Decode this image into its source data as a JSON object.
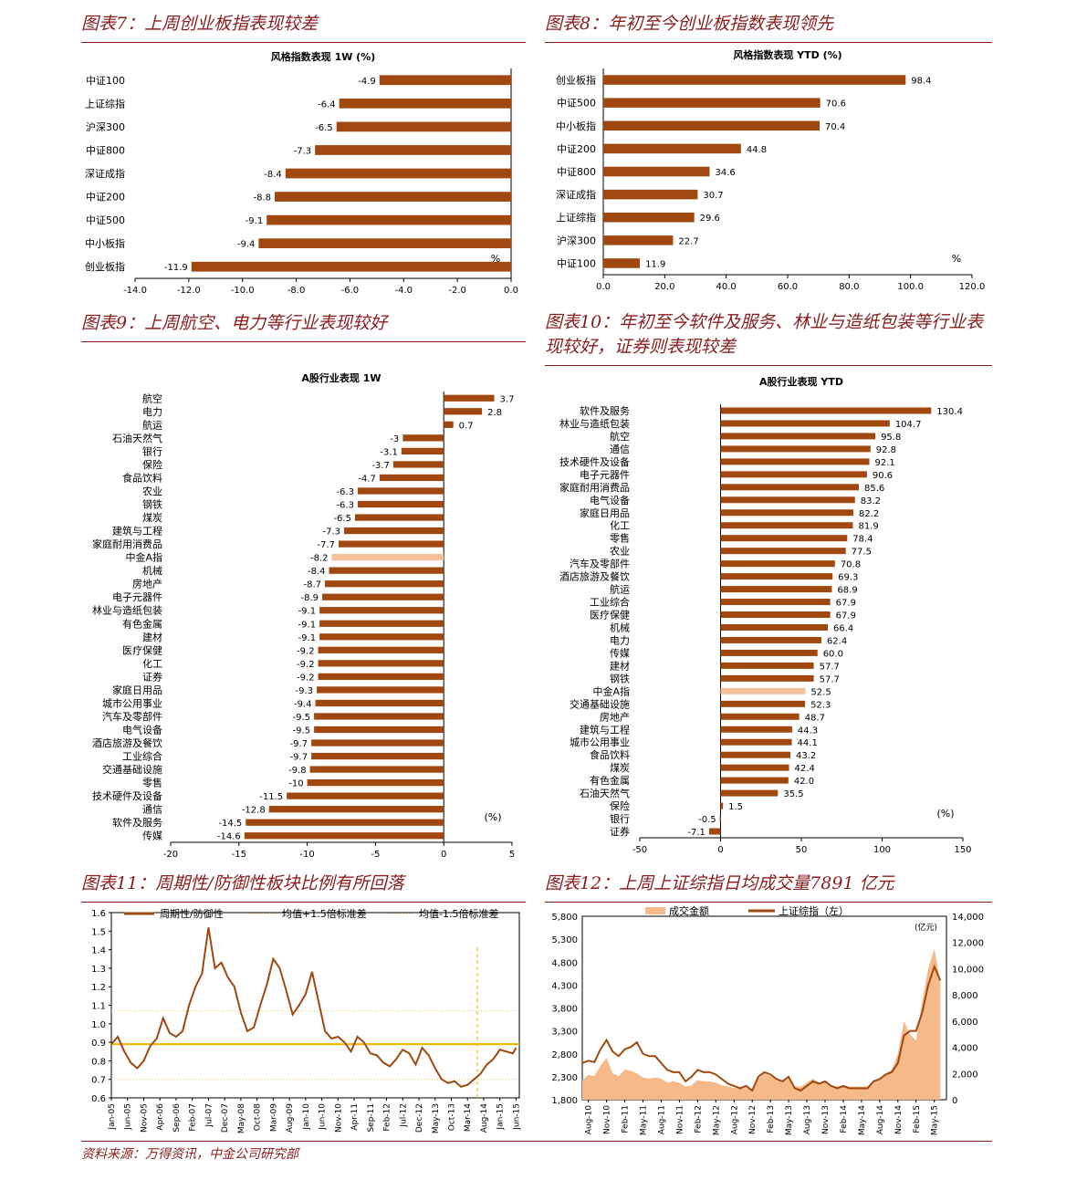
{
  "titles": {
    "t7": "图表7：上周创业板指表现较差",
    "t8": "图表8：年初至今创业板指数表现领先",
    "t9": "图表9：上周航空、电力等行业表现较好",
    "t10": "图表10：年初至今软件及服务、林业与造纸包装等行业表现较好，证券则表现较差",
    "t11": "图表11：周期性/防御性板块比例有所回落",
    "t12": "图表12：上周上证综指日均成交量7891 亿元"
  },
  "source": "资料来源：万得资讯，中金公司研究部",
  "colors": {
    "bar": "#a0480f",
    "highlight": "#f5c19b",
    "accent": "#8a1c1c",
    "line": "#a0480f",
    "mean_line": "#f0b400",
    "vol": "#f5b98a"
  },
  "chart_data": [
    {
      "id": "c7",
      "type": "bar",
      "orientation": "horizontal",
      "title": "风格指数表现 1W (%)",
      "unit_label": "%",
      "categories": [
        "中证100",
        "上证综指",
        "沪深300",
        "中证800",
        "深证成指",
        "中证200",
        "中证500",
        "中小板指",
        "创业板指"
      ],
      "values": [
        -4.9,
        -6.4,
        -6.5,
        -7.3,
        -8.4,
        -8.8,
        -9.1,
        -9.4,
        -11.9
      ],
      "xlim": [
        -14,
        0
      ],
      "xticks": [
        "-14.0",
        "-12.0",
        "-10.0",
        "-8.0",
        "-6.0",
        "-4.0",
        "-2.0",
        "0.0"
      ]
    },
    {
      "id": "c8",
      "type": "bar",
      "orientation": "horizontal",
      "title": "风格指数表现 YTD (%)",
      "unit_label": "%",
      "categories": [
        "创业板指",
        "中证500",
        "中小板指",
        "中证200",
        "中证800",
        "深证成指",
        "上证综指",
        "沪深300",
        "中证100"
      ],
      "values": [
        98.4,
        70.6,
        70.4,
        44.8,
        34.6,
        30.7,
        29.6,
        22.7,
        11.9
      ],
      "xlim": [
        0,
        120
      ],
      "xticks": [
        "0.0",
        "20.0",
        "40.0",
        "60.0",
        "80.0",
        "100.0",
        "120.0"
      ]
    },
    {
      "id": "c9",
      "type": "bar",
      "orientation": "horizontal",
      "title": "A股行业表现 1W",
      "unit_label": "(%)",
      "highlight": "中金A指",
      "categories": [
        "航空",
        "电力",
        "航运",
        "石油天然气",
        "银行",
        "保险",
        "食品饮料",
        "农业",
        "钢铁",
        "煤炭",
        "建筑与工程",
        "家庭耐用消费品",
        "中金A指",
        "机械",
        "房地产",
        "电子元器件",
        "林业与造纸包装",
        "有色金属",
        "建材",
        "医疗保健",
        "化工",
        "证券",
        "家庭日用品",
        "城市公用事业",
        "汽车及零部件",
        "电气设备",
        "酒店旅游及餐饮",
        "工业综合",
        "交通基础设施",
        "零售",
        "技术硬件及设备",
        "通信",
        "软件及服务",
        "传媒"
      ],
      "values": [
        3.7,
        2.8,
        0.7,
        -3.0,
        -3.1,
        -3.7,
        -4.7,
        -6.3,
        -6.3,
        -6.5,
        -7.3,
        -7.7,
        -8.2,
        -8.4,
        -8.7,
        -8.9,
        -9.1,
        -9.1,
        -9.1,
        -9.2,
        -9.2,
        -9.2,
        -9.3,
        -9.4,
        -9.5,
        -9.5,
        -9.7,
        -9.7,
        -9.8,
        -10.0,
        -11.5,
        -12.8,
        -14.5,
        -14.6
      ],
      "xlim": [
        -20,
        5
      ],
      "xticks": [
        "-20",
        "-15",
        "-10",
        "-5",
        "0",
        "5"
      ]
    },
    {
      "id": "c10",
      "type": "bar",
      "orientation": "horizontal",
      "title": "A股行业表现 YTD",
      "unit_label": "(%)",
      "highlight": "中金A指",
      "categories": [
        "软件及服务",
        "林业与造纸包装",
        "航空",
        "通信",
        "技术硬件及设备",
        "电子元器件",
        "家庭耐用消费品",
        "电气设备",
        "家庭日用品",
        "化工",
        "零售",
        "农业",
        "汽车及零部件",
        "酒店旅游及餐饮",
        "航运",
        "工业综合",
        "医疗保健",
        "机械",
        "电力",
        "传媒",
        "建材",
        "钢铁",
        "中金A指",
        "交通基础设施",
        "房地产",
        "建筑与工程",
        "城市公用事业",
        "食品饮料",
        "煤炭",
        "有色金属",
        "石油天然气",
        "保险",
        "银行",
        "证券"
      ],
      "values": [
        130.4,
        104.7,
        95.8,
        92.8,
        92.1,
        90.6,
        85.6,
        83.2,
        82.2,
        81.9,
        78.4,
        77.5,
        70.8,
        69.3,
        68.9,
        67.9,
        67.9,
        66.4,
        62.4,
        60.0,
        57.7,
        57.7,
        52.5,
        52.3,
        48.7,
        44.3,
        44.1,
        43.2,
        42.4,
        42.0,
        35.5,
        1.5,
        -0.5,
        -7.1
      ],
      "value_labels": [
        "130.4",
        "104.7",
        "95.8",
        "92.8",
        "92.1",
        "90.6",
        "85.6",
        "83.2",
        "82.2",
        "81.9",
        "78.4",
        "77.5",
        "70.8",
        "69.3",
        "68.9",
        "67.9",
        "67.9",
        "66.4",
        "62.4",
        "60.0",
        "57.7",
        "57.7",
        "52.5",
        "52.3",
        "48.7",
        "44.3",
        "44.1",
        "43.2",
        "42.4",
        "42.0",
        "35.5",
        "1.5",
        "-0.5",
        "-7.1"
      ],
      "xlim": [
        -50,
        150
      ],
      "xticks": [
        "-50",
        "0",
        "50",
        "100",
        "150"
      ]
    },
    {
      "id": "c11",
      "type": "line",
      "legend": [
        "周期性/防御性",
        "均值+1.5倍标准差",
        "均值-1.5倍标准差"
      ],
      "ylim": [
        0.6,
        1.6
      ],
      "yticks": [
        "1.6",
        "1.5",
        "1.4",
        "1.3",
        "1.2",
        "1.1",
        "1.0",
        "0.9",
        "0.8",
        "0.7",
        "0.6"
      ],
      "xticks": [
        "Jan-05",
        "Jun-05",
        "Nov-05",
        "Apr-06",
        "Sep-06",
        "Feb-07",
        "Jul-07",
        "Dec-07",
        "May-08",
        "Oct-08",
        "Mar-09",
        "Aug-09",
        "Jan-10",
        "Jun-10",
        "Nov-10",
        "Apr-11",
        "Sep-11",
        "Feb-12",
        "Jul-12",
        "Dec-12",
        "May-13",
        "Oct-13",
        "Mar-14",
        "Aug-14",
        "Jan-15",
        "Jun-15"
      ],
      "mean": 0.89,
      "upper": 1.07,
      "lower": 0.7,
      "marker_x": "Jun-14",
      "series": [
        {
          "name": "周期性/防御性",
          "x": [
            "Jan-05",
            "Mar-05",
            "May-05",
            "Jul-05",
            "Sep-05",
            "Nov-05",
            "Jan-06",
            "Mar-06",
            "May-06",
            "Jul-06",
            "Sep-06",
            "Nov-06",
            "Jan-07",
            "Mar-07",
            "May-07",
            "Jul-07",
            "Sep-07",
            "Nov-07",
            "Jan-08",
            "Mar-08",
            "May-08",
            "Jul-08",
            "Sep-08",
            "Nov-08",
            "Jan-09",
            "Mar-09",
            "May-09",
            "Jul-09",
            "Sep-09",
            "Nov-09",
            "Jan-10",
            "Mar-10",
            "May-10",
            "Jul-10",
            "Sep-10",
            "Nov-10",
            "Jan-11",
            "Mar-11",
            "May-11",
            "Jul-11",
            "Sep-11",
            "Nov-11",
            "Jan-12",
            "Mar-12",
            "May-12",
            "Jul-12",
            "Sep-12",
            "Nov-12",
            "Jan-13",
            "Mar-13",
            "May-13",
            "Jul-13",
            "Sep-13",
            "Nov-13",
            "Jan-14",
            "Mar-14",
            "May-14",
            "Jul-14",
            "Sep-14",
            "Nov-14",
            "Jan-15",
            "Mar-15",
            "May-15",
            "Jun-15"
          ],
          "values": [
            0.89,
            0.93,
            0.85,
            0.79,
            0.76,
            0.8,
            0.88,
            0.92,
            1.03,
            0.95,
            0.93,
            0.96,
            1.1,
            1.2,
            1.27,
            1.52,
            1.3,
            1.33,
            1.25,
            1.2,
            1.06,
            0.96,
            0.98,
            1.1,
            1.21,
            1.35,
            1.3,
            1.18,
            1.05,
            1.1,
            1.16,
            1.28,
            1.12,
            0.96,
            0.92,
            0.93,
            0.9,
            0.85,
            0.93,
            0.9,
            0.84,
            0.83,
            0.79,
            0.77,
            0.81,
            0.86,
            0.84,
            0.78,
            0.87,
            0.83,
            0.76,
            0.7,
            0.68,
            0.69,
            0.66,
            0.67,
            0.7,
            0.73,
            0.78,
            0.81,
            0.86,
            0.85,
            0.84,
            0.87
          ]
        }
      ]
    },
    {
      "id": "c12",
      "type": "line",
      "legend": [
        "成交金额",
        "上证综指（左）"
      ],
      "right_unit": "(亿元)",
      "ylim_left": [
        1800,
        5800
      ],
      "ylim_right": [
        0,
        14000
      ],
      "yticks_left": [
        "5,800",
        "5,300",
        "4,800",
        "4,300",
        "3,800",
        "3,300",
        "2,800",
        "2,300",
        "1,800"
      ],
      "yticks_right": [
        "14,000",
        "12,000",
        "10,000",
        "8,000",
        "6,000",
        "4,000",
        "2,000",
        "0"
      ],
      "xticks": [
        "Aug-10",
        "Nov-10",
        "Feb-11",
        "May-11",
        "Aug-11",
        "Nov-11",
        "Feb-12",
        "May-12",
        "Aug-12",
        "Nov-12",
        "Feb-13",
        "May-13",
        "Aug-13",
        "Nov-13",
        "Feb-14",
        "May-14",
        "Aug-14",
        "Nov-14",
        "Feb-15",
        "May-15"
      ],
      "series": [
        {
          "name": "上证综指（左）",
          "x": [
            "Jul-10",
            "Aug-10",
            "Sep-10",
            "Oct-10",
            "Nov-10",
            "Dec-10",
            "Jan-11",
            "Feb-11",
            "Mar-11",
            "Apr-11",
            "May-11",
            "Jun-11",
            "Jul-11",
            "Aug-11",
            "Sep-11",
            "Oct-11",
            "Nov-11",
            "Dec-11",
            "Jan-12",
            "Feb-12",
            "Mar-12",
            "Apr-12",
            "May-12",
            "Jun-12",
            "Jul-12",
            "Aug-12",
            "Sep-12",
            "Oct-12",
            "Nov-12",
            "Dec-12",
            "Jan-13",
            "Feb-13",
            "Mar-13",
            "Apr-13",
            "May-13",
            "Jun-13",
            "Jul-13",
            "Aug-13",
            "Sep-13",
            "Oct-13",
            "Nov-13",
            "Dec-13",
            "Jan-14",
            "Feb-14",
            "Mar-14",
            "Apr-14",
            "May-14",
            "Jun-14",
            "Jul-14",
            "Aug-14",
            "Sep-14",
            "Oct-14",
            "Nov-14",
            "Dec-14",
            "Jan-15",
            "Feb-15",
            "Mar-15",
            "Apr-15",
            "May-15",
            "Jun-15"
          ],
          "values": [
            2600,
            2650,
            2620,
            2900,
            3100,
            2850,
            2750,
            2900,
            2950,
            3050,
            2800,
            2750,
            2750,
            2600,
            2450,
            2400,
            2400,
            2200,
            2300,
            2450,
            2400,
            2400,
            2350,
            2250,
            2150,
            2100,
            2050,
            2100,
            2000,
            2300,
            2400,
            2350,
            2250,
            2200,
            2300,
            2050,
            2000,
            2100,
            2200,
            2150,
            2200,
            2100,
            2050,
            2100,
            2050,
            2050,
            2050,
            2050,
            2200,
            2250,
            2350,
            2400,
            2600,
            3200,
            3300,
            3300,
            3700,
            4300,
            4700,
            4400
          ]
        },
        {
          "name": "成交金额",
          "x": [
            "Jul-10",
            "Aug-10",
            "Sep-10",
            "Oct-10",
            "Nov-10",
            "Dec-10",
            "Jan-11",
            "Feb-11",
            "Mar-11",
            "Apr-11",
            "May-11",
            "Jun-11",
            "Jul-11",
            "Aug-11",
            "Sep-11",
            "Oct-11",
            "Nov-11",
            "Dec-11",
            "Jan-12",
            "Feb-12",
            "Mar-12",
            "Apr-12",
            "May-12",
            "Jun-12",
            "Jul-12",
            "Aug-12",
            "Sep-12",
            "Oct-12",
            "Nov-12",
            "Dec-12",
            "Jan-13",
            "Feb-13",
            "Mar-13",
            "Apr-13",
            "May-13",
            "Jun-13",
            "Jul-13",
            "Aug-13",
            "Sep-13",
            "Oct-13",
            "Nov-13",
            "Dec-13",
            "Jan-14",
            "Feb-14",
            "Mar-14",
            "Apr-14",
            "May-14",
            "Jun-14",
            "Jul-14",
            "Aug-14",
            "Sep-14",
            "Oct-14",
            "Nov-14",
            "Dec-14",
            "Jan-15",
            "Feb-15",
            "Mar-15",
            "Apr-15",
            "May-15",
            "Jun-15"
          ],
          "values": [
            1500,
            1900,
            1800,
            2600,
            3200,
            2000,
            1800,
            2300,
            2200,
            2000,
            1700,
            1600,
            1700,
            1600,
            1300,
            1400,
            1300,
            1000,
            1100,
            1500,
            1400,
            1400,
            1300,
            1100,
            1000,
            900,
            900,
            900,
            800,
            1600,
            2000,
            1800,
            1500,
            1400,
            1600,
            1000,
            1000,
            1300,
            1600,
            1300,
            1300,
            1100,
            1000,
            1100,
            1000,
            1000,
            1000,
            1000,
            1500,
            1600,
            2000,
            2300,
            3500,
            6000,
            5000,
            4500,
            7500,
            10000,
            11500,
            9000
          ]
        }
      ]
    }
  ]
}
